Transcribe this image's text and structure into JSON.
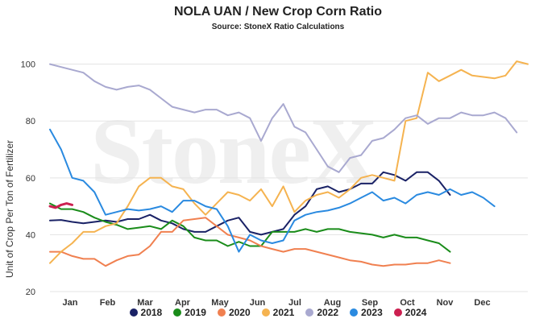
{
  "chart_data": {
    "type": "line",
    "title": "NOLA UAN / New Crop Corn Ratio",
    "subtitle": "Source: StoneX Ratio Calculations",
    "ylabel": "Unit of Crop Per Ton of Fertilizer",
    "xlabel": "",
    "watermark": "StoneX",
    "ylim": [
      20,
      105
    ],
    "yticks": [
      "20",
      "40",
      "60",
      "80",
      "100"
    ],
    "xticks": [
      "Jan",
      "Feb",
      "Mar",
      "Apr",
      "May",
      "Jun",
      "Jul",
      "Aug",
      "Sep",
      "Oct",
      "Nov",
      "Dec"
    ],
    "x_range_months": [
      0,
      12.5
    ],
    "grid": "horizontal",
    "legend_position": "bottom",
    "series": [
      {
        "name": "2018",
        "color": "#1a2266",
        "points": [
          [
            0,
            45
          ],
          [
            0.5,
            45.2
          ],
          [
            1,
            44.5
          ],
          [
            1.5,
            44
          ],
          [
            2,
            44.5
          ],
          [
            2.5,
            45
          ],
          [
            3,
            44.5
          ],
          [
            3.5,
            45.5
          ],
          [
            4,
            45.5
          ],
          [
            4.5,
            47
          ],
          [
            5,
            45
          ],
          [
            5.5,
            44
          ],
          [
            6,
            42
          ],
          [
            6.5,
            41
          ],
          [
            7,
            41
          ],
          [
            7.5,
            43
          ],
          [
            8,
            45
          ],
          [
            8.5,
            46
          ],
          [
            9,
            41
          ],
          [
            9.5,
            40
          ],
          [
            10,
            41
          ],
          [
            10.5,
            42
          ],
          [
            11,
            47
          ],
          [
            11.5,
            50
          ],
          [
            12,
            56
          ],
          [
            12.5,
            57
          ],
          [
            13,
            55
          ],
          [
            13.5,
            56
          ],
          [
            14,
            58
          ],
          [
            14.5,
            58
          ],
          [
            15,
            62
          ],
          [
            15.5,
            61
          ],
          [
            16,
            59
          ],
          [
            16.5,
            62
          ],
          [
            17,
            62
          ],
          [
            17.5,
            59
          ],
          [
            18,
            54
          ]
        ]
      },
      {
        "name": "2019",
        "color": "#1a8c1a",
        "points": [
          [
            0,
            51
          ],
          [
            0.5,
            49
          ],
          [
            1,
            49
          ],
          [
            1.5,
            48
          ],
          [
            2,
            46
          ],
          [
            2.5,
            44.5
          ],
          [
            3,
            43.5
          ],
          [
            3.5,
            42
          ],
          [
            4,
            42.5
          ],
          [
            4.5,
            43
          ],
          [
            5,
            42
          ],
          [
            5.5,
            45
          ],
          [
            6,
            43
          ],
          [
            6.5,
            39
          ],
          [
            7,
            38
          ],
          [
            7.5,
            38
          ],
          [
            8,
            36
          ],
          [
            8.5,
            37.5
          ],
          [
            9,
            36
          ],
          [
            9.5,
            36
          ],
          [
            10,
            41
          ],
          [
            10.5,
            41
          ],
          [
            11,
            41
          ],
          [
            11.5,
            42
          ],
          [
            12,
            41
          ],
          [
            12.5,
            42
          ],
          [
            13,
            42
          ],
          [
            13.5,
            41
          ],
          [
            14,
            40.5
          ],
          [
            14.5,
            40
          ],
          [
            15,
            39
          ],
          [
            15.5,
            40
          ],
          [
            16,
            39
          ],
          [
            16.5,
            39
          ],
          [
            17,
            38
          ],
          [
            17.5,
            37
          ],
          [
            18,
            34
          ]
        ]
      },
      {
        "name": "2020",
        "color": "#f08050",
        "points": [
          [
            0,
            34
          ],
          [
            0.5,
            34
          ],
          [
            1,
            32.5
          ],
          [
            1.5,
            31.5
          ],
          [
            2,
            31.5
          ],
          [
            2.5,
            29
          ],
          [
            3,
            31
          ],
          [
            3.5,
            32.5
          ],
          [
            4,
            33
          ],
          [
            4.5,
            36
          ],
          [
            5,
            41
          ],
          [
            5.5,
            41
          ],
          [
            6,
            45
          ],
          [
            6.5,
            45.5
          ],
          [
            7,
            46
          ],
          [
            7.5,
            43
          ],
          [
            8,
            40
          ],
          [
            8.5,
            39
          ],
          [
            9,
            38
          ],
          [
            9.5,
            36
          ],
          [
            10,
            35
          ],
          [
            10.5,
            34
          ],
          [
            11,
            35
          ],
          [
            11.5,
            35
          ],
          [
            12,
            34
          ],
          [
            12.5,
            33
          ],
          [
            13,
            32
          ],
          [
            13.5,
            31
          ],
          [
            14,
            30.5
          ],
          [
            14.5,
            29.5
          ],
          [
            15,
            29
          ],
          [
            15.5,
            29.5
          ],
          [
            16,
            29.5
          ],
          [
            16.5,
            30
          ],
          [
            17,
            30
          ],
          [
            17.5,
            31
          ],
          [
            18,
            30
          ]
        ]
      },
      {
        "name": "2021",
        "color": "#f5b350",
        "points": [
          [
            0,
            30
          ],
          [
            0.5,
            34
          ],
          [
            1,
            37
          ],
          [
            1.5,
            41
          ],
          [
            2,
            41
          ],
          [
            2.5,
            43
          ],
          [
            3,
            44
          ],
          [
            3.5,
            50
          ],
          [
            4,
            57
          ],
          [
            4.5,
            60
          ],
          [
            5,
            60
          ],
          [
            5.5,
            57
          ],
          [
            6,
            56
          ],
          [
            6.5,
            51
          ],
          [
            7,
            47
          ],
          [
            7.5,
            51
          ],
          [
            8,
            55
          ],
          [
            8.5,
            54
          ],
          [
            9,
            52
          ],
          [
            9.5,
            56
          ],
          [
            10,
            50
          ],
          [
            10.5,
            57
          ],
          [
            11,
            48
          ],
          [
            11.5,
            52
          ],
          [
            12,
            54
          ],
          [
            12.5,
            55
          ],
          [
            13,
            53
          ],
          [
            13.5,
            56
          ],
          [
            14,
            60
          ],
          [
            14.5,
            61
          ],
          [
            15,
            60
          ],
          [
            15.5,
            59
          ],
          [
            16,
            80
          ],
          [
            16.5,
            81
          ],
          [
            17,
            97
          ],
          [
            17.5,
            94
          ],
          [
            18,
            96
          ],
          [
            18.5,
            98
          ],
          [
            19,
            96
          ],
          [
            19.5,
            95.5
          ],
          [
            20,
            95
          ],
          [
            20.5,
            96
          ],
          [
            21,
            101
          ],
          [
            21.5,
            100
          ]
        ]
      },
      {
        "name": "2022",
        "color": "#a9a9d0",
        "points": [
          [
            0,
            100
          ],
          [
            0.5,
            99
          ],
          [
            1,
            98
          ],
          [
            1.5,
            97
          ],
          [
            2,
            94
          ],
          [
            2.5,
            92
          ],
          [
            3,
            91
          ],
          [
            3.5,
            92
          ],
          [
            4,
            92.5
          ],
          [
            4.5,
            91
          ],
          [
            5,
            88
          ],
          [
            5.5,
            85
          ],
          [
            6,
            84
          ],
          [
            6.5,
            83
          ],
          [
            7,
            84
          ],
          [
            7.5,
            84
          ],
          [
            8,
            82
          ],
          [
            8.5,
            83
          ],
          [
            9,
            81
          ],
          [
            9.5,
            73
          ],
          [
            10,
            81
          ],
          [
            10.5,
            86
          ],
          [
            11,
            78
          ],
          [
            11.5,
            76
          ],
          [
            12,
            70
          ],
          [
            12.5,
            64
          ],
          [
            13,
            62
          ],
          [
            13.5,
            67
          ],
          [
            14,
            68
          ],
          [
            14.5,
            73
          ],
          [
            15,
            74
          ],
          [
            15.5,
            77
          ],
          [
            16,
            81
          ],
          [
            16.5,
            82
          ],
          [
            17,
            79
          ],
          [
            17.5,
            81
          ],
          [
            18,
            81
          ],
          [
            18.5,
            83
          ],
          [
            19,
            82
          ],
          [
            19.5,
            82
          ],
          [
            20,
            83
          ],
          [
            20.5,
            81
          ],
          [
            21,
            76
          ]
        ]
      },
      {
        "name": "2023",
        "color": "#2a8ae0",
        "points": [
          [
            0,
            77
          ],
          [
            0.5,
            70
          ],
          [
            1,
            60
          ],
          [
            1.5,
            59
          ],
          [
            2,
            55
          ],
          [
            2.5,
            47
          ],
          [
            3,
            48
          ],
          [
            3.5,
            49
          ],
          [
            4,
            48.5
          ],
          [
            4.5,
            49
          ],
          [
            5,
            50
          ],
          [
            5.5,
            48
          ],
          [
            6,
            52
          ],
          [
            6.5,
            52
          ],
          [
            7,
            50
          ],
          [
            7.5,
            49
          ],
          [
            8,
            43
          ],
          [
            8.5,
            34
          ],
          [
            9,
            40
          ],
          [
            9.5,
            38
          ],
          [
            10,
            37
          ],
          [
            10.5,
            38
          ],
          [
            11,
            45
          ],
          [
            11.5,
            47
          ],
          [
            12,
            48
          ],
          [
            12.5,
            48.5
          ],
          [
            13,
            49.5
          ],
          [
            13.5,
            51
          ],
          [
            14,
            53
          ],
          [
            14.5,
            55
          ],
          [
            15,
            52
          ],
          [
            15.5,
            53
          ],
          [
            16,
            51
          ],
          [
            16.5,
            54
          ],
          [
            17,
            55
          ],
          [
            17.5,
            54
          ],
          [
            18,
            56
          ],
          [
            18.5,
            54
          ],
          [
            19,
            55
          ],
          [
            19.5,
            53
          ],
          [
            20,
            50
          ]
        ]
      },
      {
        "name": "2024",
        "color": "#cc2050",
        "points": [
          [
            0,
            50
          ],
          [
            0.25,
            49.5
          ],
          [
            0.5,
            50.5
          ],
          [
            0.75,
            51
          ],
          [
            1,
            50.5
          ]
        ]
      }
    ]
  }
}
